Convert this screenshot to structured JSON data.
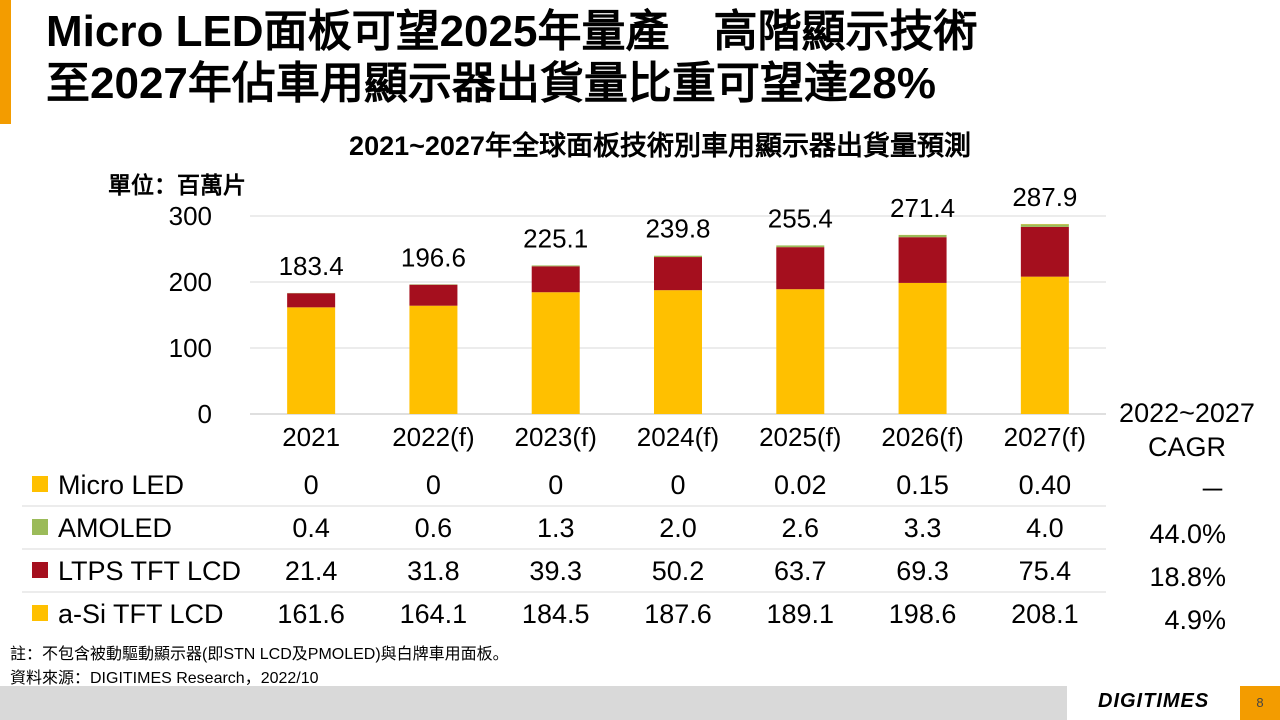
{
  "slide": {
    "title_line1": "Micro LED面板可望2025年量產　高階顯示技術",
    "title_line2": "至2027年佔車用顯示器出貨量比重可望達28%",
    "unit_label": "單位：百萬片",
    "cagr_header": [
      "2022~2027",
      "CAGR"
    ],
    "note": "註：不包含被動驅動顯示器(即STN LCD及PMOLED)與白牌車用面板。",
    "source": "資料來源：DIGITIMES Research，2022/10",
    "logo": "DIGITIMES",
    "page_number": "8",
    "accent_color": "#f39c00"
  },
  "chart_data": {
    "type": "bar",
    "stacked": true,
    "title": "2021~2027年全球面板技術別車用顯示器出貨量預測",
    "categories": [
      "2021",
      "2022(f)",
      "2023(f)",
      "2024(f)",
      "2025(f)",
      "2026(f)",
      "2027(f)"
    ],
    "ylim": [
      0,
      300
    ],
    "yticks": [
      0,
      100,
      200,
      300
    ],
    "totals": [
      "183.4",
      "196.6",
      "225.1",
      "239.8",
      "255.4",
      "271.4",
      "287.9"
    ],
    "series": [
      {
        "name": "a-Si TFT LCD",
        "color": "#ffc000",
        "values": [
          161.6,
          164.1,
          184.5,
          187.6,
          189.1,
          198.6,
          208.1
        ],
        "labels": [
          "161.6",
          "164.1",
          "184.5",
          "187.6",
          "189.1",
          "198.6",
          "208.1"
        ],
        "cagr": "4.9%"
      },
      {
        "name": "LTPS TFT LCD",
        "color": "#a50f1e",
        "values": [
          21.4,
          31.8,
          39.3,
          50.2,
          63.7,
          69.3,
          75.4
        ],
        "labels": [
          "21.4",
          "31.8",
          "39.3",
          "50.2",
          "63.7",
          "69.3",
          "75.4"
        ],
        "cagr": "18.8%"
      },
      {
        "name": "AMOLED",
        "color": "#9bbb59",
        "values": [
          0.4,
          0.6,
          1.3,
          2.0,
          2.6,
          3.3,
          4.0
        ],
        "labels": [
          "0.4",
          "0.6",
          "1.3",
          "2.0",
          "2.6",
          "3.3",
          "4.0"
        ],
        "cagr": "44.0%"
      },
      {
        "name": "Micro LED",
        "color": "#ffc000",
        "values": [
          0,
          0,
          0,
          0,
          0.02,
          0.15,
          0.4
        ],
        "labels": [
          "0",
          "0",
          "0",
          "0",
          "0.02",
          "0.15",
          "0.40"
        ],
        "cagr": "－"
      }
    ],
    "table_order": [
      "Micro LED",
      "AMOLED",
      "LTPS TFT LCD",
      "a-Si TFT LCD"
    ]
  }
}
